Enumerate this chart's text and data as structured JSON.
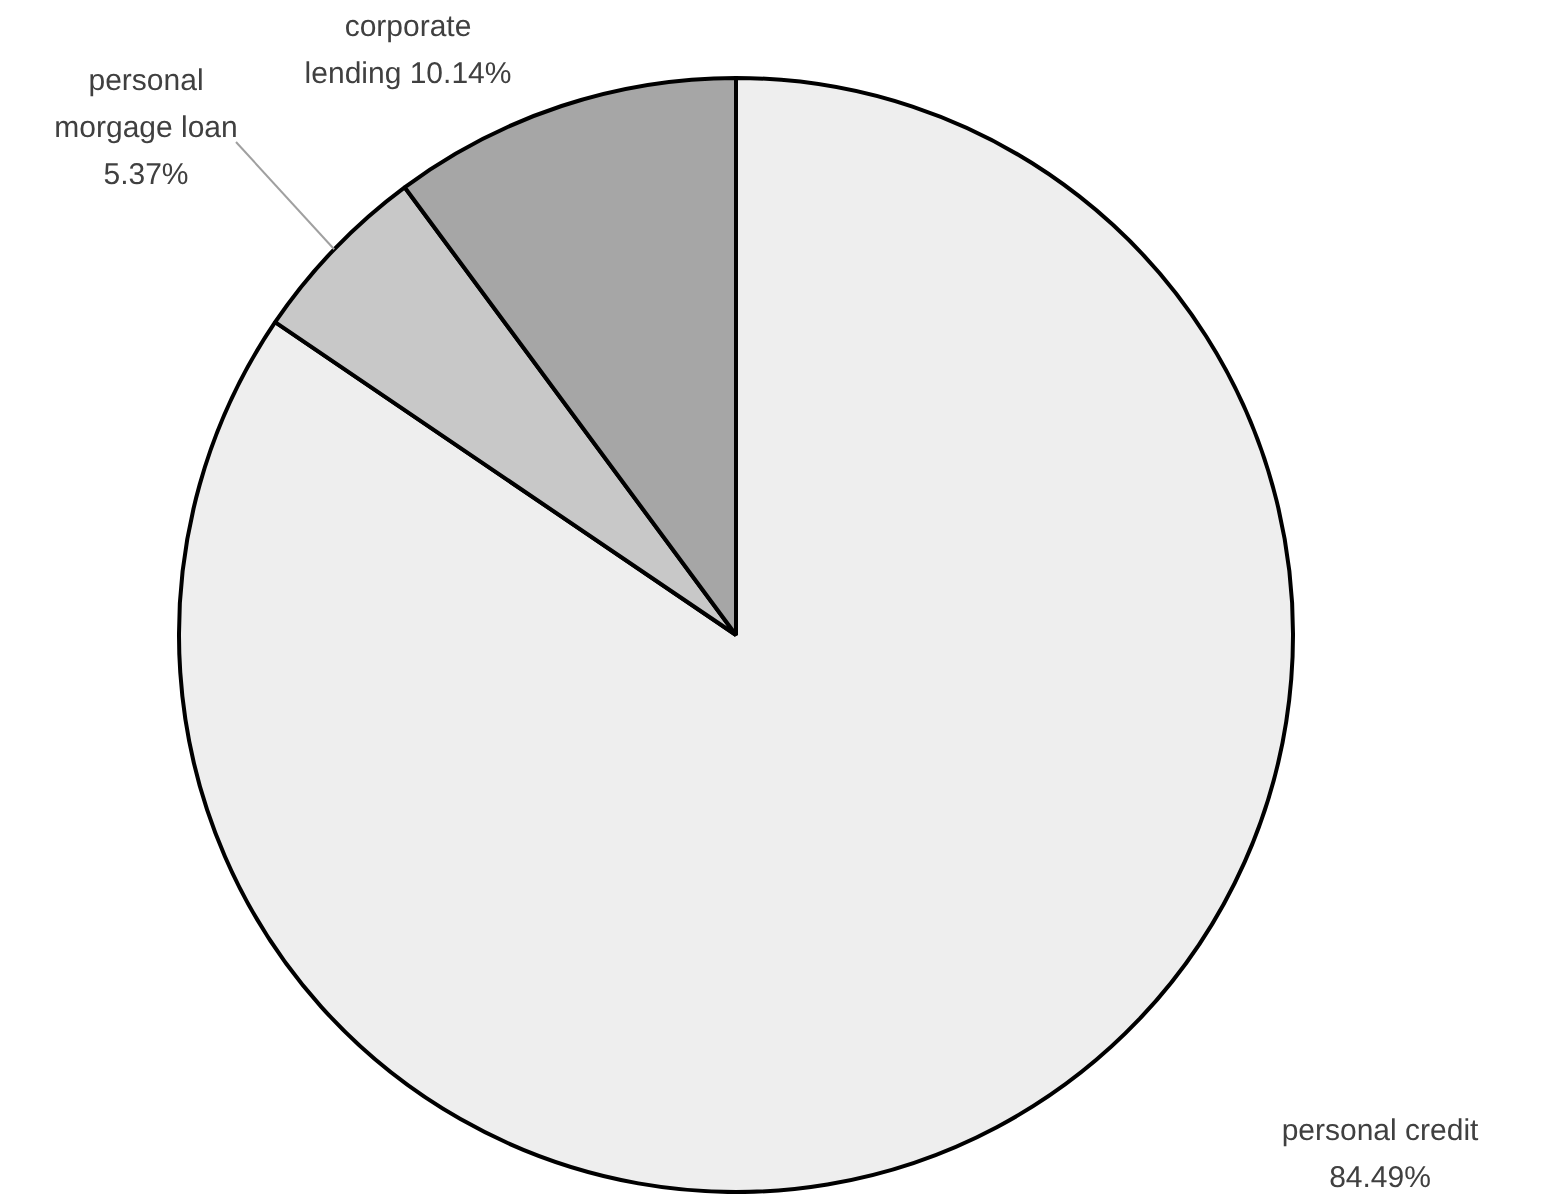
{
  "chart_data": {
    "type": "pie",
    "categories": [
      "personal credit",
      "personal morgage loan",
      "corporate lending"
    ],
    "values": [
      84.49,
      5.37,
      10.14
    ],
    "colors": [
      "#eeeeee",
      "#c8c8c8",
      "#a6a6a6"
    ],
    "value_labels": [
      "84.49%",
      "5.37%",
      "10.14%"
    ],
    "legend": false
  }
}
